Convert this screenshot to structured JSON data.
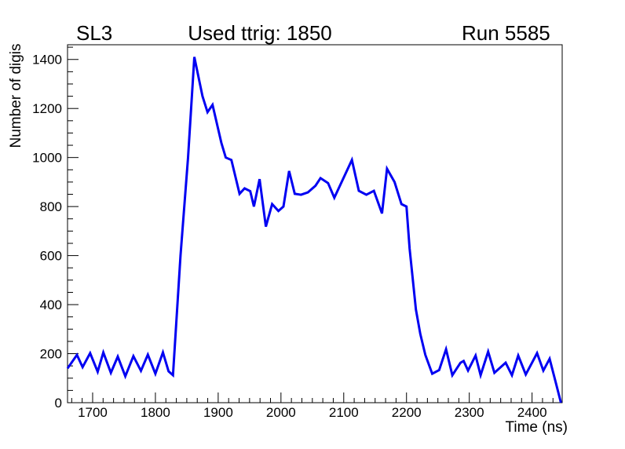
{
  "header": {
    "left_label": "SL3",
    "title": "Used ttrig: 1850",
    "right_label": "Run 5585"
  },
  "chart_data": {
    "type": "line",
    "title": "Used ttrig: 1850",
    "subtitle_left": "SL3",
    "subtitle_right": "Run 5585",
    "xlabel": "Time (ns)",
    "ylabel": "Number of digis",
    "xlim": [
      1660,
      2448
    ],
    "ylim": [
      0,
      1460
    ],
    "x_major_ticks": [
      1700,
      1800,
      1900,
      2000,
      2100,
      2200,
      2300,
      2400
    ],
    "x_minor_divisions": 6,
    "y_major_ticks": [
      0,
      200,
      400,
      600,
      800,
      1000,
      1200,
      1400
    ],
    "y_minor_step": 50,
    "grid": false,
    "legend_position": "none",
    "line_color": "#0000f2",
    "axis_color": "#000000",
    "background_color": "#ffffff",
    "series": [
      {
        "name": "number-of-digis-vs-time",
        "points": [
          [
            1660,
            140
          ],
          [
            1675,
            195
          ],
          [
            1684,
            145
          ],
          [
            1696,
            202
          ],
          [
            1708,
            126
          ],
          [
            1717,
            205
          ],
          [
            1729,
            122
          ],
          [
            1740,
            188
          ],
          [
            1752,
            108
          ],
          [
            1765,
            190
          ],
          [
            1777,
            130
          ],
          [
            1788,
            196
          ],
          [
            1800,
            118
          ],
          [
            1812,
            205
          ],
          [
            1821,
            128
          ],
          [
            1828,
            112
          ],
          [
            1840,
            600
          ],
          [
            1852,
            1000
          ],
          [
            1862,
            1410
          ],
          [
            1875,
            1250
          ],
          [
            1883,
            1185
          ],
          [
            1891,
            1215
          ],
          [
            1905,
            1060
          ],
          [
            1912,
            1000
          ],
          [
            1921,
            990
          ],
          [
            1934,
            852
          ],
          [
            1942,
            874
          ],
          [
            1951,
            863
          ],
          [
            1957,
            800
          ],
          [
            1966,
            912
          ],
          [
            1976,
            718
          ],
          [
            1986,
            810
          ],
          [
            1996,
            782
          ],
          [
            2004,
            800
          ],
          [
            2013,
            945
          ],
          [
            2022,
            852
          ],
          [
            2032,
            848
          ],
          [
            2043,
            858
          ],
          [
            2055,
            885
          ],
          [
            2063,
            916
          ],
          [
            2075,
            896
          ],
          [
            2085,
            836
          ],
          [
            2113,
            990
          ],
          [
            2124,
            864
          ],
          [
            2136,
            848
          ],
          [
            2148,
            864
          ],
          [
            2161,
            772
          ],
          [
            2169,
            954
          ],
          [
            2181,
            900
          ],
          [
            2192,
            810
          ],
          [
            2200,
            800
          ],
          [
            2205,
            628
          ],
          [
            2215,
            380
          ],
          [
            2222,
            280
          ],
          [
            2230,
            195
          ],
          [
            2241,
            118
          ],
          [
            2252,
            133
          ],
          [
            2263,
            218
          ],
          [
            2273,
            112
          ],
          [
            2286,
            163
          ],
          [
            2291,
            170
          ],
          [
            2298,
            131
          ],
          [
            2310,
            192
          ],
          [
            2318,
            112
          ],
          [
            2330,
            208
          ],
          [
            2340,
            122
          ],
          [
            2358,
            163
          ],
          [
            2368,
            112
          ],
          [
            2378,
            192
          ],
          [
            2390,
            115
          ],
          [
            2400,
            163
          ],
          [
            2408,
            202
          ],
          [
            2418,
            131
          ],
          [
            2428,
            179
          ],
          [
            2438,
            80
          ],
          [
            2446,
            0
          ]
        ]
      }
    ]
  }
}
